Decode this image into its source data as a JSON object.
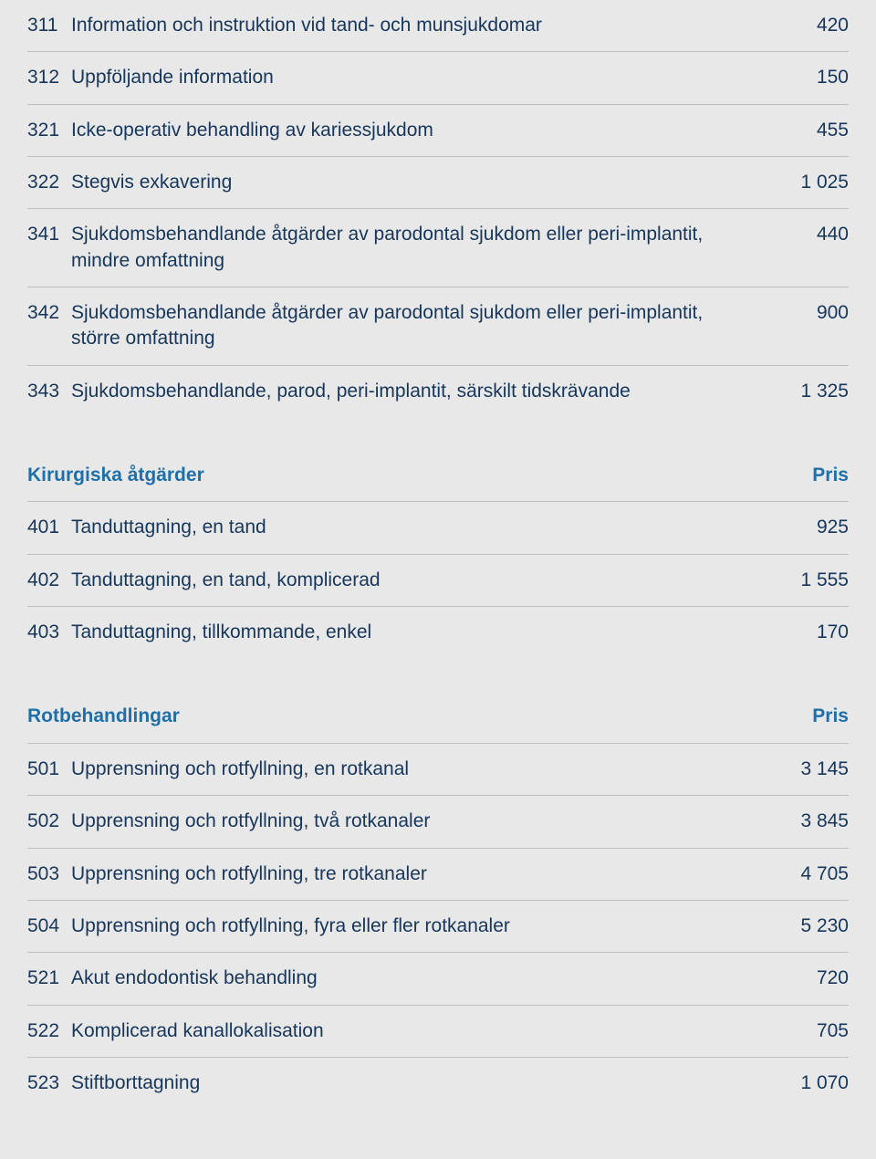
{
  "table1": {
    "rows": [
      {
        "code": "311",
        "desc": "Information och instruktion vid tand- och munsjukdomar",
        "value": "420"
      },
      {
        "code": "312",
        "desc": "Uppföljande information",
        "value": "150"
      },
      {
        "code": "321",
        "desc": "Icke-operativ behandling av kariessjukdom",
        "value": "455"
      },
      {
        "code": "322",
        "desc": "Stegvis exkavering",
        "value": "1 025"
      },
      {
        "code": "341",
        "desc": "Sjukdomsbehandlande åtgärder av parodontal sjukdom eller peri-implantit, mindre omfattning",
        "value": "440"
      },
      {
        "code": "342",
        "desc": "Sjukdomsbehandlande åtgärder av parodontal sjukdom eller peri-implantit, större omfattning",
        "value": "900"
      },
      {
        "code": "343",
        "desc": "Sjukdomsbehandlande, parod, peri-implantit, särskilt tidskrävande",
        "value": "1 325"
      }
    ]
  },
  "section2": {
    "title": "Kirurgiska åtgärder",
    "pris": "Pris",
    "rows": [
      {
        "code": "401",
        "desc": "Tanduttagning, en tand",
        "value": "925"
      },
      {
        "code": "402",
        "desc": "Tanduttagning, en tand, komplicerad",
        "value": "1 555"
      },
      {
        "code": "403",
        "desc": "Tanduttagning, tillkommande, enkel",
        "value": "170"
      }
    ]
  },
  "section3": {
    "title": "Rotbehandlingar",
    "pris": "Pris",
    "rows": [
      {
        "code": "501",
        "desc": "Upprensning och rotfyllning, en rotkanal",
        "value": "3 145"
      },
      {
        "code": "502",
        "desc": "Upprensning och rotfyllning, två rotkanaler",
        "value": "3 845"
      },
      {
        "code": "503",
        "desc": "Upprensning och rotfyllning, tre rotkanaler",
        "value": "4 705"
      },
      {
        "code": "504",
        "desc": "Upprensning och rotfyllning, fyra eller fler rotkanaler",
        "value": "5 230"
      },
      {
        "code": "521",
        "desc": "Akut endodontisk behandling",
        "value": "720"
      },
      {
        "code": "522",
        "desc": "Komplicerad kanallokalisation",
        "value": "705"
      },
      {
        "code": "523",
        "desc": "Stiftborttagning",
        "value": "1 070"
      }
    ]
  }
}
